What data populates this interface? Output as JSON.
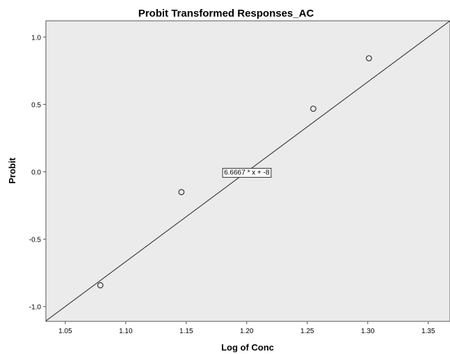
{
  "chart_data": {
    "type": "scatter",
    "title": "Probit Transformed Responses_AC",
    "xlabel": "Log of Conc",
    "ylabel": "Probit",
    "xlim": [
      1.034,
      1.368
    ],
    "ylim": [
      -1.11,
      1.12
    ],
    "xticks": [
      1.05,
      1.1,
      1.15,
      1.2,
      1.25,
      1.3,
      1.35
    ],
    "xtick_labels": [
      "1.05",
      "1.10",
      "1.15",
      "1.20",
      "1.25",
      "1.30",
      "1.35"
    ],
    "yticks": [
      1.0,
      0.5,
      0.0,
      -0.5,
      -1.0
    ],
    "ytick_labels": [
      "1.0",
      "0.5",
      "0.0",
      "-0.5",
      "-1.0"
    ],
    "grid": false,
    "background_color": "#ebebeb",
    "series": [
      {
        "x": [
          1.079,
          1.146,
          1.255,
          1.301
        ],
        "y": [
          -0.842,
          -0.151,
          0.468,
          0.842
        ],
        "marker": "open-circle"
      }
    ],
    "fit_line": {
      "slope": 6.6667,
      "intercept": -8,
      "label": "6.6667 * x + -8",
      "label_anchor_x": 1.2
    }
  }
}
